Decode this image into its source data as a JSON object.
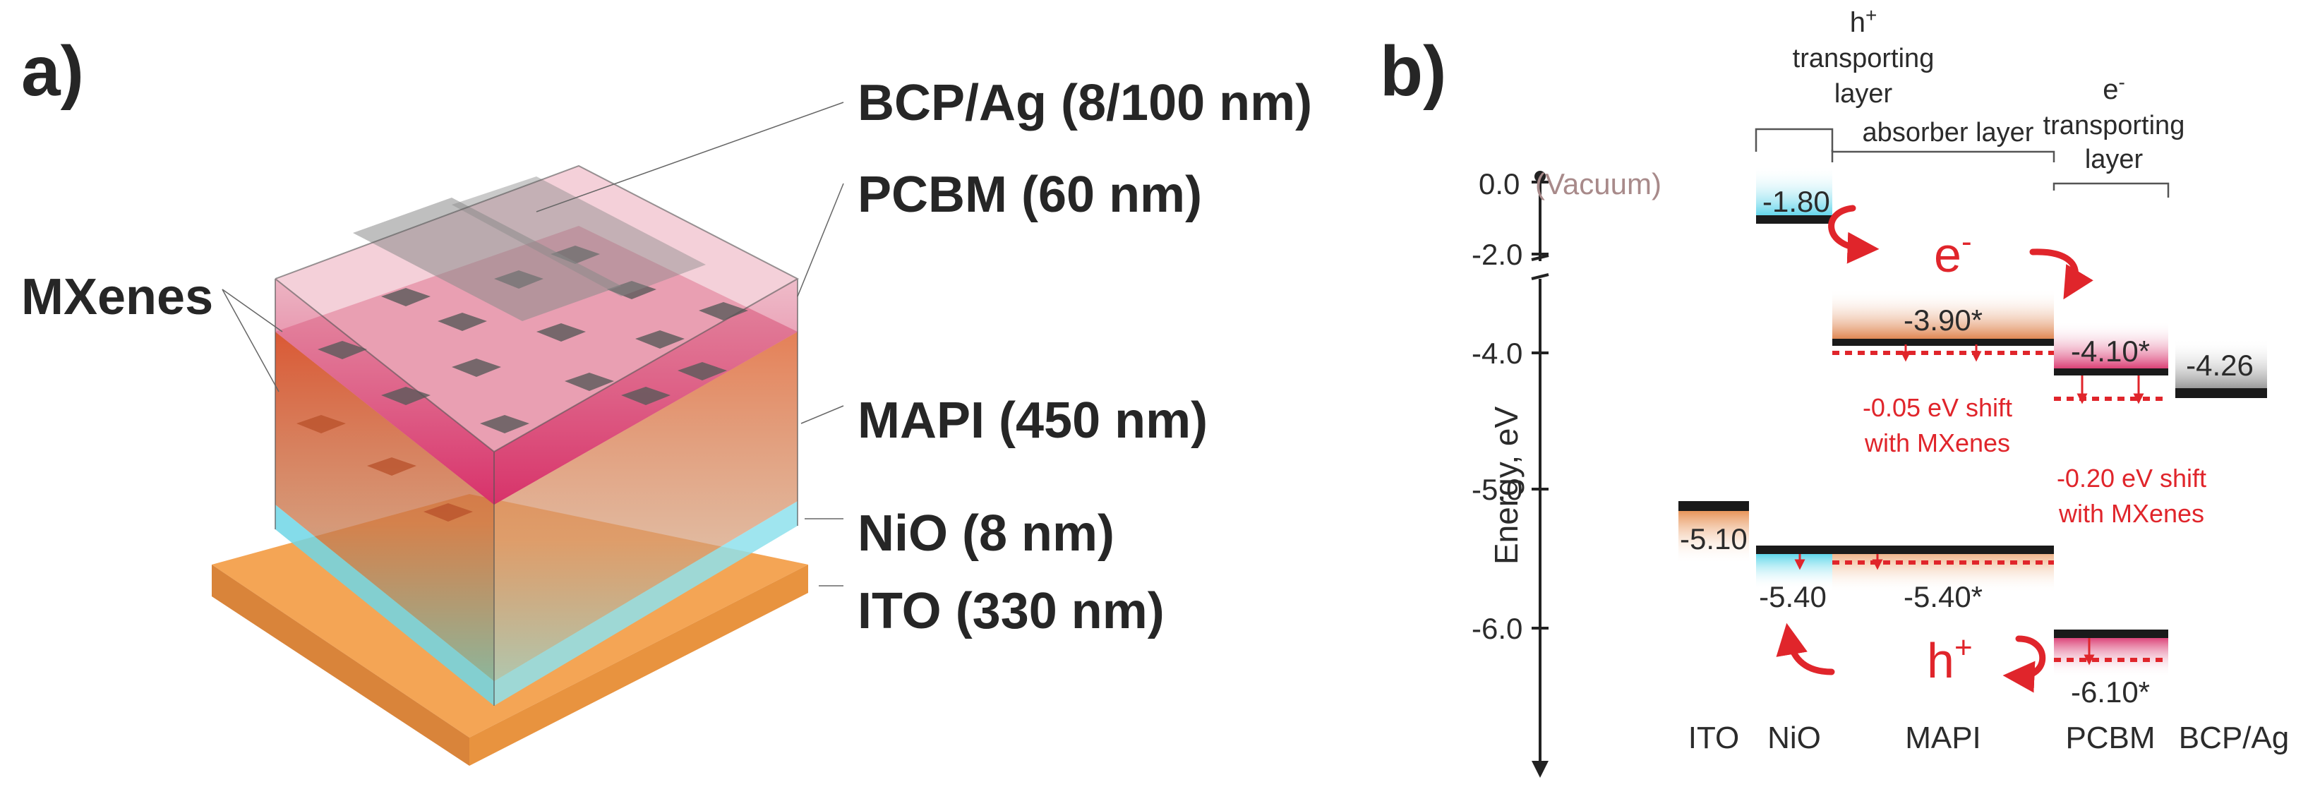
{
  "panel_a": {
    "label": "a)",
    "mxenes": "MXenes",
    "layers": [
      {
        "name": "BCP/Ag (8/100 nm)"
      },
      {
        "name": "PCBM (60 nm)"
      },
      {
        "name": "MAPI (450 nm)"
      },
      {
        "name": "NiO (8 nm)"
      },
      {
        "name": "ITO (330 nm)"
      }
    ]
  },
  "panel_b": {
    "label": "b)",
    "y_axis_label": "Energy, eV",
    "vacuum_value": "0.0",
    "vacuum_label": "(Vacuum)",
    "ticks": [
      "-2.0",
      "-4.0",
      "-5.0",
      "-6.0"
    ],
    "headers": {
      "htl_top": "h",
      "htl_sup": "+",
      "htl_l2": "transporting",
      "htl_l3": "layer",
      "absorber": "absorber layer",
      "etl_top": "e",
      "etl_sup": "-",
      "etl_l2": "transporting",
      "etl_l3": "layer"
    },
    "levels": {
      "nio_cb": "-1.80",
      "mapi_cb": "-3.90*",
      "pcbm_lumo": "-4.10*",
      "bcp": "-4.26",
      "ito": "-5.10",
      "nio_vb": "-5.40",
      "mapi_vb": "-5.40*",
      "pcbm_homo": "-6.10*"
    },
    "carriers": {
      "electron": "e",
      "electron_sup": "-",
      "hole": "h",
      "hole_sup": "+"
    },
    "shift_mapi_l1": "-0.05 eV shift",
    "shift_mapi_l2": "with MXenes",
    "shift_pcbm_l1": "-0.20 eV shift",
    "shift_pcbm_l2": "with MXenes",
    "materials": [
      "ITO",
      "NiO",
      "MAPI",
      "PCBM",
      "BCP/Ag"
    ],
    "colors": {
      "accent_red": "#e0252b",
      "ito_orange": "#f0a04a",
      "nio_cyan": "#5fd6ea",
      "mapi_orange": "#d8622a",
      "pcbm_pink": "#d8306a"
    }
  }
}
